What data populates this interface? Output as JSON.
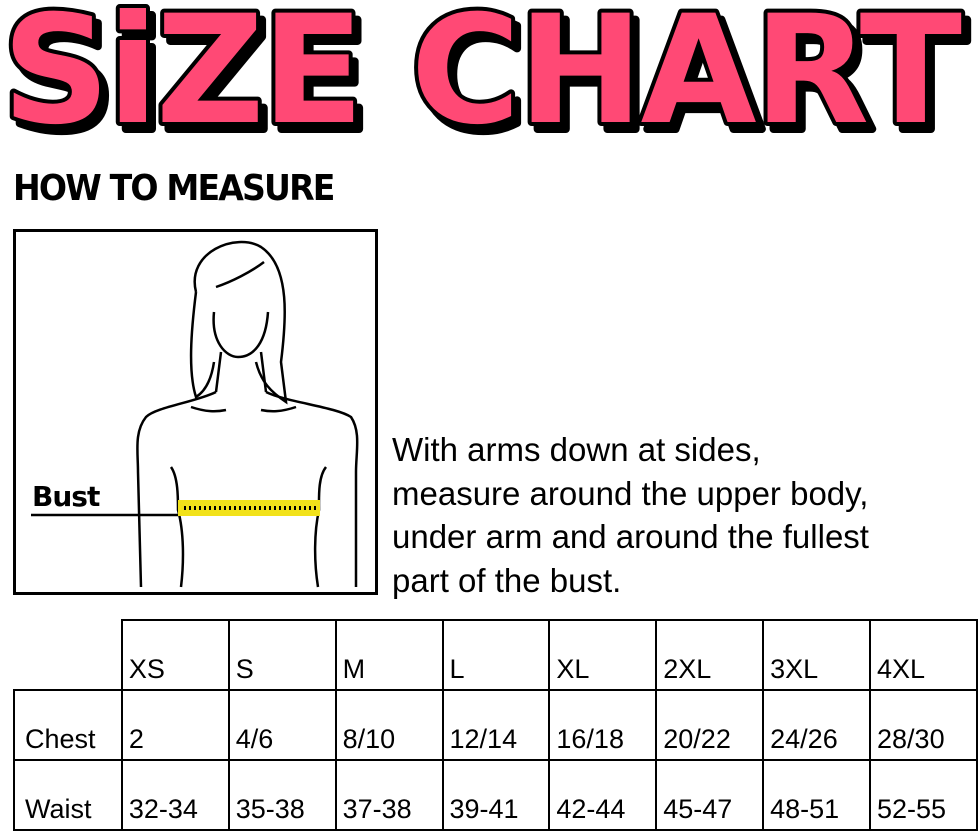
{
  "title": "SiZE CHART",
  "colors": {
    "title_fill": "#ff4a74",
    "tape": "#f2e21a"
  },
  "how_to_measure": "HOW TO MEASURE",
  "figure": {
    "label": "Bust"
  },
  "instructions": [
    "With arms down at sides,",
    "measure around the upper body,",
    "under arm and around the fullest",
    "part of the bust."
  ],
  "table": {
    "sizes": [
      "XS",
      "S",
      "M",
      "L",
      "XL",
      "2XL",
      "3XL",
      "4XL"
    ],
    "rows": [
      {
        "label": "Chest",
        "values": [
          "2",
          "4/6",
          "8/10",
          "12/14",
          "16/18",
          "20/22",
          "24/26",
          "28/30"
        ]
      },
      {
        "label": "Waist",
        "values": [
          "32-34",
          "35-38",
          "37-38",
          "39-41",
          "42-44",
          "45-47",
          "48-51",
          "52-55"
        ]
      }
    ]
  }
}
